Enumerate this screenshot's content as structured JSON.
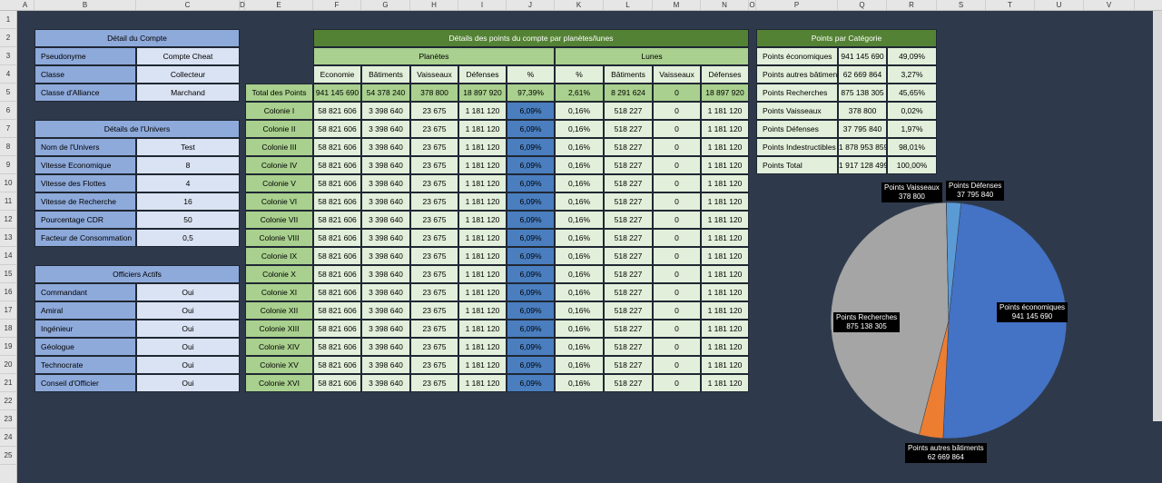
{
  "columns": [
    "A",
    "B",
    "C",
    "D",
    "E",
    "F",
    "G",
    "H",
    "I",
    "J",
    "K",
    "L",
    "M",
    "N",
    "O",
    "P",
    "Q",
    "R",
    "S",
    "T",
    "U",
    "V"
  ],
  "rows": [
    "1",
    "2",
    "3",
    "4",
    "5",
    "6",
    "7",
    "8",
    "9",
    "10",
    "11",
    "12",
    "13",
    "14",
    "15",
    "16",
    "17",
    "18",
    "19",
    "20",
    "21",
    "22",
    "23",
    "24",
    "25"
  ],
  "compte": {
    "title": "Détail du Compte",
    "rows": [
      {
        "label": "Pseudonyme",
        "value": "Compte Cheat"
      },
      {
        "label": "Classe",
        "value": "Collecteur"
      },
      {
        "label": "Classe d'Alliance",
        "value": "Marchand"
      }
    ]
  },
  "univers": {
    "title": "Détails de l'Univers",
    "rows": [
      {
        "label": "Nom de l'Univers",
        "value": "Test"
      },
      {
        "label": "Vitesse Economique",
        "value": "8"
      },
      {
        "label": "Vitesse des Flottes",
        "value": "4"
      },
      {
        "label": "Vitesse de Recherche",
        "value": "16"
      },
      {
        "label": "Pourcentage CDR",
        "value": "50"
      },
      {
        "label": "Facteur de Consommation",
        "value": "0,5"
      }
    ]
  },
  "officiers": {
    "title": "Officiers Actifs",
    "rows": [
      {
        "label": "Commandant",
        "value": "Oui"
      },
      {
        "label": "Amiral",
        "value": "Oui"
      },
      {
        "label": "Ingénieur",
        "value": "Oui"
      },
      {
        "label": "Géologue",
        "value": "Oui"
      },
      {
        "label": "Technocrate",
        "value": "Oui"
      },
      {
        "label": "Conseil d'Officier",
        "value": "Oui"
      }
    ]
  },
  "details": {
    "title": "Détails des points du compte par planètes/lunes",
    "planetes": "Planètes",
    "lunes": "Lunes",
    "headers": [
      "Economie",
      "Bâtiments",
      "Vaisseaux",
      "Défenses",
      "%",
      "%",
      "Bâtiments",
      "Vaisseaux",
      "Défenses"
    ],
    "total": {
      "label": "Total des Points",
      "values": [
        "941 145 690",
        "54 378 240",
        "378 800",
        "18 897 920",
        "97,39%",
        "2,61%",
        "8 291 624",
        "0",
        "18 897 920"
      ]
    },
    "colony_values": [
      "58 821 606",
      "3 398 640",
      "23 675",
      "1 181 120",
      "6,09%",
      "0,16%",
      "518 227",
      "0",
      "1 181 120"
    ],
    "colonies": [
      "Colonie I",
      "Colonie II",
      "Colonie III",
      "Colonie IV",
      "Colonie V",
      "Colonie VI",
      "Colonie VII",
      "Colonie VIII",
      "Colonie IX",
      "Colonie X",
      "Colonie XI",
      "Colonie XII",
      "Colonie XIII",
      "Colonie XIV",
      "Colonie XV",
      "Colonie XVI"
    ]
  },
  "categorie": {
    "title": "Points par Catégorie",
    "rows": [
      {
        "label": "Points économiques",
        "value": "941 145 690",
        "pct": "49,09%"
      },
      {
        "label": "Points autres bâtiments",
        "value": "62 669 864",
        "pct": "3,27%"
      },
      {
        "label": "Points Recherches",
        "value": "875 138 305",
        "pct": "45,65%"
      },
      {
        "label": "Points Vaisseaux",
        "value": "378 800",
        "pct": "0,02%"
      },
      {
        "label": "Points Défenses",
        "value": "37 795 840",
        "pct": "1,97%"
      },
      {
        "label": "Points Indestructibles",
        "value": "1 878 953 859",
        "pct": "98,01%"
      },
      {
        "label": "Points Total",
        "value": "1 917 128 499",
        "pct": "100,00%"
      }
    ]
  },
  "chart_data": {
    "type": "pie",
    "slices": [
      {
        "label": "Points économiques",
        "value": 941145690,
        "color": "#4472c4",
        "text": "Points économiques\n941 145 690"
      },
      {
        "label": "Points autres bâtiments",
        "value": 62669864,
        "color": "#ed7d31",
        "text": "Points autres bâtiments\n62 669 864"
      },
      {
        "label": "Points Recherches",
        "value": 875138305,
        "color": "#a5a5a5",
        "text": "Points Recherches\n875 138 305"
      },
      {
        "label": "Points Vaisseaux",
        "value": 378800,
        "color": "#ffc000",
        "text": "Points Vaisseaux\n378 800"
      },
      {
        "label": "Points Défenses",
        "value": 37795840,
        "color": "#5b9bd5",
        "text": "Points Défenses\n37 795 840"
      }
    ]
  }
}
